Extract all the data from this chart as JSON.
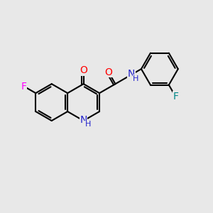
{
  "background_color": "#e8e8e8",
  "bond_color": "#000000",
  "bond_width": 1.5,
  "atom_colors": {
    "F_left": "#ff00ff",
    "O": "#ff0000",
    "N_quinoline": "#2222cc",
    "N_amide": "#2222cc",
    "F_right": "#008888"
  },
  "font_size": 9,
  "figure_size": [
    3.0,
    3.0
  ],
  "dpi": 100,
  "xlim": [
    0,
    10
  ],
  "ylim": [
    0,
    10
  ]
}
